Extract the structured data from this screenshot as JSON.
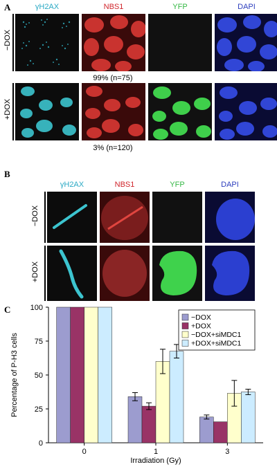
{
  "panel_a": {
    "label": "A",
    "channels": [
      "γH2AX",
      "NBS1",
      "YFP",
      "DAPI"
    ],
    "rows": [
      {
        "label": "−DOX",
        "stat": "99% (n=75)"
      },
      {
        "label": "+DOX",
        "stat": "3% (n=120)"
      }
    ]
  },
  "panel_b": {
    "label": "B",
    "channels": [
      "γH2AX",
      "NBS1",
      "YFP",
      "DAPI"
    ],
    "rows": [
      {
        "label": "−DOX"
      },
      {
        "label": "+DOX"
      }
    ]
  },
  "panel_c": {
    "label": "C"
  },
  "colors": {
    "cyan": "#2aa9c4",
    "red": "#d0242b",
    "green": "#35b845",
    "blue": "#2c3dbd"
  },
  "chart_data": {
    "type": "bar",
    "xlabel": "Irradiation (Gy)",
    "ylabel": "Percentage of P-H3 cells",
    "categories": [
      "0",
      "1",
      "3"
    ],
    "ylim": [
      0,
      100
    ],
    "yticks": [
      "0",
      "25",
      "50",
      "75",
      "100"
    ],
    "legend_position": "top-right",
    "series": [
      {
        "name": "−DOX",
        "color": "#9c9ccf",
        "values": [
          100,
          34,
          19
        ],
        "errors": [
          0,
          3,
          1.5
        ]
      },
      {
        "name": "+DOX",
        "color": "#993366",
        "values": [
          100,
          27,
          15.5
        ],
        "errors": [
          0,
          2.5,
          0
        ]
      },
      {
        "name": "−DOX+siMDC1",
        "color": "#ffffcc",
        "values": [
          100,
          60,
          36.5
        ],
        "errors": [
          0,
          9,
          9.5
        ]
      },
      {
        "name": "+DOX+siMDC1",
        "color": "#ccecff",
        "values": [
          100,
          67.5,
          37.5
        ],
        "errors": [
          0,
          5,
          2
        ]
      }
    ]
  }
}
